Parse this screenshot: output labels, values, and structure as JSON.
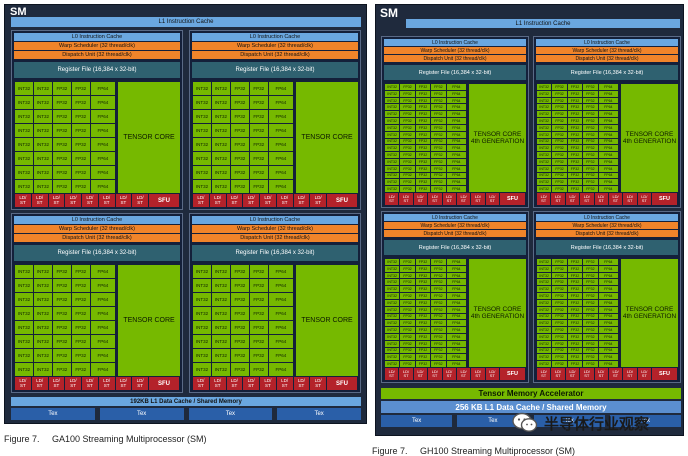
{
  "left": {
    "sm_label": "SM",
    "l1_instruction_cache": "L1 Instruction Cache",
    "quadrant": {
      "l0_cache": "L0 Instruction Cache",
      "warp_scheduler": "Warp Scheduler (32 thread/clk)",
      "dispatch_unit": "Dispatch Unit (32 thread/clk)",
      "register_file": "Register File (16,384 x 32-bit)",
      "unit_labels": [
        "INT32",
        "INT32",
        "FP32",
        "FP32",
        "FP64"
      ],
      "tensor_core": [
        "TENSOR CORE"
      ],
      "ld_label": "LD/",
      "st_label": "ST",
      "sfu": "SFU"
    },
    "data_cache": "192KB L1 Data Cache / Shared Memory",
    "tex": [
      "Tex",
      "Tex",
      "Tex",
      "Tex"
    ],
    "caption_num": "Figure 7.",
    "caption_text": "GA100 Streaming Multiprocessor (SM)"
  },
  "right": {
    "sm_label": "SM",
    "l1_instruction_cache": "L1 Instruction Cache",
    "quadrant": {
      "l0_cache": "L0 Instruction Cache",
      "warp_scheduler": "Warp Scheduler (32 thread/clk)",
      "dispatch_unit": "Dispatch Unit (32 thread/clk)",
      "register_file": "Register File (16,384 x 32-bit)",
      "unit_labels": [
        "INT32",
        "FP32",
        "FP32",
        "FP32",
        "FP64"
      ],
      "tensor_core": [
        "TENSOR CORE",
        "4th GENERATION"
      ],
      "ld_label": "LD/",
      "st_label": "ST",
      "sfu": "SFU"
    },
    "tensor_memory_accelerator": "Tensor Memory Accelerator",
    "data_cache": "256 KB L1 Data Cache / Shared Memory",
    "tex": [
      "Tex",
      "Tex",
      "Tex",
      "Tex"
    ],
    "caption_num": "Figure 7.",
    "caption_text": "GH100 Streaming Multiprocessor (SM)"
  },
  "watermark": {
    "text": "半导体行业观察",
    "icon": "wechat-icon"
  }
}
